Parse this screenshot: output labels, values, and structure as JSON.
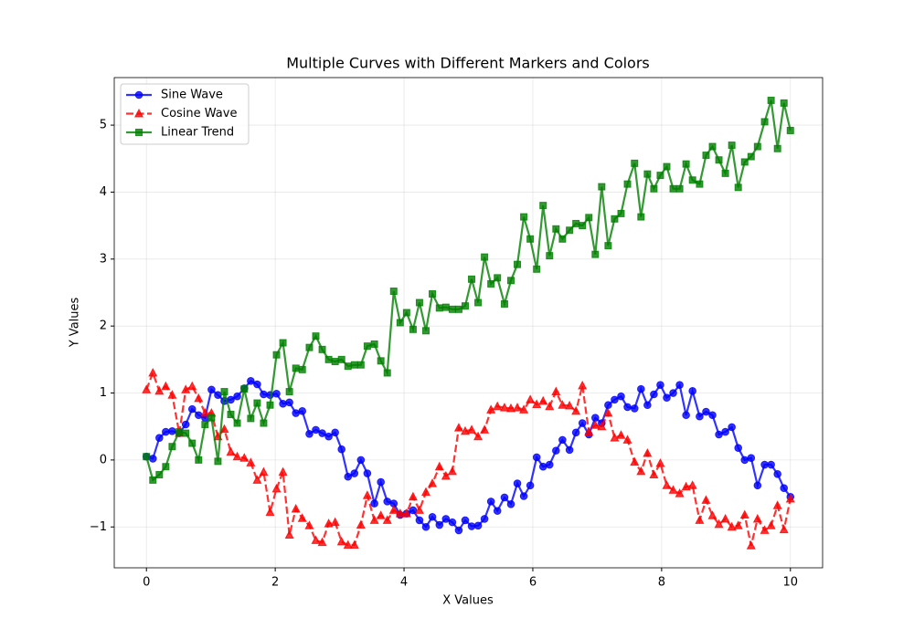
{
  "chart_data": {
    "type": "line",
    "title": "Multiple Curves with Different Markers and Colors",
    "xlabel": "X Values",
    "ylabel": "Y Values",
    "x": [
      0,
      0.1,
      0.2,
      0.3,
      0.4,
      0.51,
      0.61,
      0.71,
      0.81,
      0.91,
      1.01,
      1.11,
      1.21,
      1.31,
      1.41,
      1.52,
      1.62,
      1.72,
      1.82,
      1.92,
      2.02,
      2.12,
      2.22,
      2.32,
      2.42,
      2.53,
      2.63,
      2.73,
      2.83,
      2.93,
      3.03,
      3.13,
      3.23,
      3.33,
      3.43,
      3.54,
      3.64,
      3.74,
      3.84,
      3.94,
      4.04,
      4.14,
      4.24,
      4.34,
      4.44,
      4.55,
      4.65,
      4.75,
      4.85,
      4.95,
      5.05,
      5.15,
      5.25,
      5.35,
      5.45,
      5.56,
      5.66,
      5.76,
      5.86,
      5.96,
      6.06,
      6.16,
      6.26,
      6.36,
      6.46,
      6.57,
      6.67,
      6.77,
      6.87,
      6.97,
      7.07,
      7.17,
      7.27,
      7.37,
      7.47,
      7.58,
      7.68,
      7.78,
      7.88,
      7.98,
      8.08,
      8.18,
      8.28,
      8.38,
      8.48,
      8.59,
      8.69,
      8.79,
      8.89,
      8.99,
      9.09,
      9.19,
      9.29,
      9.39,
      9.49,
      9.6,
      9.7,
      9.8,
      9.9,
      10
    ],
    "series": [
      {
        "name": "Sine Wave",
        "color": "#0000ff",
        "marker": "circle",
        "linestyle": "solid",
        "values": [
          0.05,
          0.02,
          0.33,
          0.42,
          0.43,
          0.4,
          0.53,
          0.76,
          0.67,
          0.63,
          1.05,
          0.97,
          0.88,
          0.9,
          0.95,
          1.07,
          1.18,
          1.13,
          0.98,
          0.97,
          0.99,
          0.84,
          0.86,
          0.7,
          0.73,
          0.39,
          0.45,
          0.4,
          0.35,
          0.41,
          0.16,
          -0.25,
          -0.2,
          0.0,
          -0.2,
          -0.65,
          -0.33,
          -0.62,
          -0.65,
          -0.82,
          -0.8,
          -0.75,
          -0.9,
          -1.0,
          -0.85,
          -0.97,
          -0.88,
          -0.93,
          -1.05,
          -0.9,
          -0.99,
          -0.98,
          -0.88,
          -0.62,
          -0.76,
          -0.56,
          -0.66,
          -0.35,
          -0.54,
          -0.38,
          0.04,
          -0.1,
          -0.07,
          0.14,
          0.3,
          0.15,
          0.41,
          0.55,
          0.38,
          0.63,
          0.55,
          0.82,
          0.9,
          0.95,
          0.79,
          0.77,
          1.06,
          0.82,
          0.98,
          1.12,
          0.93,
          1.0,
          1.12,
          0.67,
          1.03,
          0.65,
          0.72,
          0.67,
          0.38,
          0.42,
          0.49,
          0.18,
          0.0,
          0.03,
          -0.38,
          -0.07,
          -0.07,
          -0.21,
          -0.42,
          -0.55
        ]
      },
      {
        "name": "Cosine Wave",
        "color": "#ff0000",
        "marker": "triangle",
        "linestyle": "dashed",
        "values": [
          1.05,
          1.3,
          1.03,
          1.1,
          0.97,
          0.4,
          1.05,
          1.1,
          0.92,
          0.7,
          0.7,
          0.35,
          0.46,
          0.12,
          0.05,
          0.03,
          -0.04,
          -0.3,
          -0.18,
          -0.78,
          -0.43,
          -0.18,
          -1.12,
          -0.73,
          -0.87,
          -0.98,
          -1.2,
          -1.23,
          -0.95,
          -0.93,
          -1.22,
          -1.27,
          -1.27,
          -0.97,
          -0.53,
          -0.9,
          -0.83,
          -0.9,
          -0.75,
          -0.8,
          -0.8,
          -0.55,
          -0.75,
          -0.48,
          -0.35,
          -0.1,
          -0.24,
          -0.17,
          0.48,
          0.43,
          0.45,
          0.35,
          0.45,
          0.75,
          0.8,
          0.78,
          0.77,
          0.78,
          0.75,
          0.9,
          0.83,
          0.88,
          0.8,
          1.02,
          0.82,
          0.81,
          0.73,
          1.11,
          0.42,
          0.52,
          0.5,
          0.7,
          0.33,
          0.37,
          0.3,
          -0.03,
          -0.17,
          0.1,
          -0.22,
          -0.05,
          -0.38,
          -0.45,
          -0.5,
          -0.4,
          -0.38,
          -0.9,
          -0.6,
          -0.83,
          -0.96,
          -0.88,
          -1.0,
          -0.98,
          -0.82,
          -1.28,
          -0.88,
          -1.05,
          -0.98,
          -0.68,
          -1.04,
          -0.58
        ]
      },
      {
        "name": "Linear Trend",
        "color": "#008000",
        "marker": "square",
        "linestyle": "solid",
        "values": [
          0.05,
          -0.3,
          -0.22,
          -0.1,
          0.2,
          0.42,
          0.4,
          0.25,
          0.0,
          0.53,
          0.63,
          -0.02,
          1.02,
          0.68,
          0.55,
          1.06,
          0.62,
          0.85,
          0.55,
          0.82,
          1.57,
          1.75,
          1.02,
          1.37,
          1.35,
          1.68,
          1.85,
          1.65,
          1.5,
          1.47,
          1.5,
          1.4,
          1.42,
          1.42,
          1.7,
          1.73,
          1.48,
          1.3,
          2.52,
          2.05,
          2.2,
          1.95,
          2.35,
          1.93,
          2.48,
          2.27,
          2.28,
          2.25,
          2.25,
          2.3,
          2.7,
          2.35,
          3.03,
          2.63,
          2.72,
          2.33,
          2.68,
          2.92,
          3.63,
          3.3,
          2.85,
          3.8,
          3.05,
          3.45,
          3.3,
          3.43,
          3.53,
          3.5,
          3.62,
          3.07,
          4.08,
          3.2,
          3.6,
          3.68,
          4.12,
          4.43,
          3.63,
          4.27,
          4.05,
          4.25,
          4.38,
          4.05,
          4.05,
          4.42,
          4.18,
          4.12,
          4.55,
          4.68,
          4.48,
          4.28,
          4.7,
          4.07,
          4.45,
          4.53,
          4.68,
          5.05,
          5.37,
          4.65,
          5.33,
          4.92
        ]
      }
    ],
    "xlim": [
      -0.5,
      10.5
    ],
    "xticks": [
      0,
      2,
      4,
      6,
      8,
      10
    ],
    "ylim": [
      -1.61,
      5.71
    ],
    "yticks": [
      {
        "value": -1,
        "label": "−1"
      },
      0,
      1,
      2,
      3,
      4,
      5
    ],
    "grid": true,
    "legend": "upper left"
  }
}
